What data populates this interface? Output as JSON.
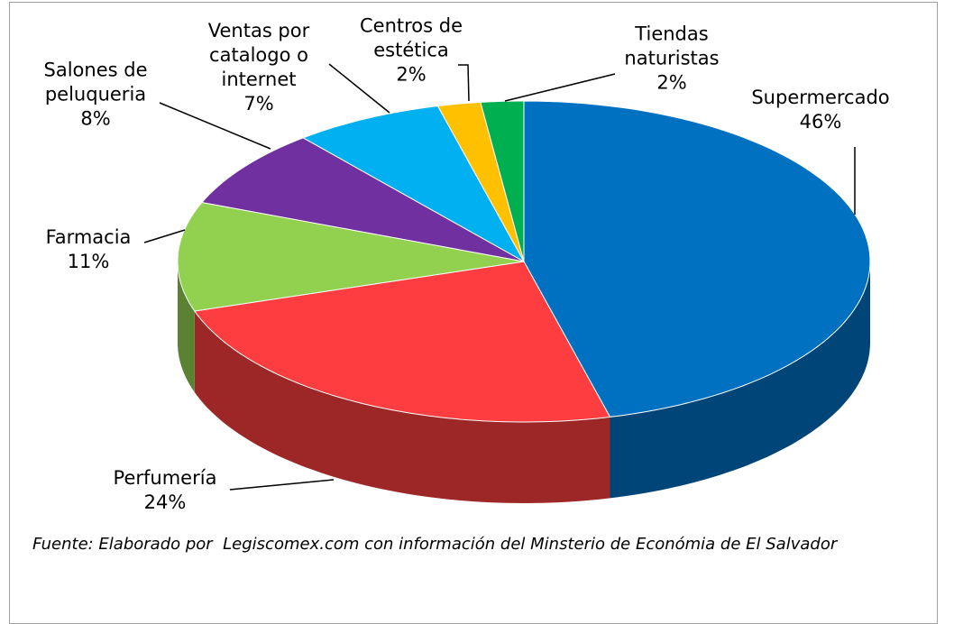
{
  "chart_data": {
    "type": "pie",
    "categories": [
      "Supermercado",
      "Perfumería",
      "Farmacia",
      "Salones de\npeluqueria",
      "Ventas por\ncatalogo o\ninternet",
      "Centros de\nestética",
      "Tiendas\nnaturistas"
    ],
    "values": [
      46,
      24,
      11,
      8,
      7,
      2,
      2
    ],
    "value_labels": [
      "46%",
      "24%",
      "11%",
      "8%",
      "7%",
      "2%",
      "2%"
    ],
    "colors": [
      "#0070c0",
      "#fd3d3f",
      "#92d050",
      "#7030a0",
      "#00b0f0",
      "#ffc000",
      "#00b050"
    ],
    "note": "Fuente: Elaborado por  Legiscomex.com con información del Minsterio de Económia de El Salvador"
  }
}
